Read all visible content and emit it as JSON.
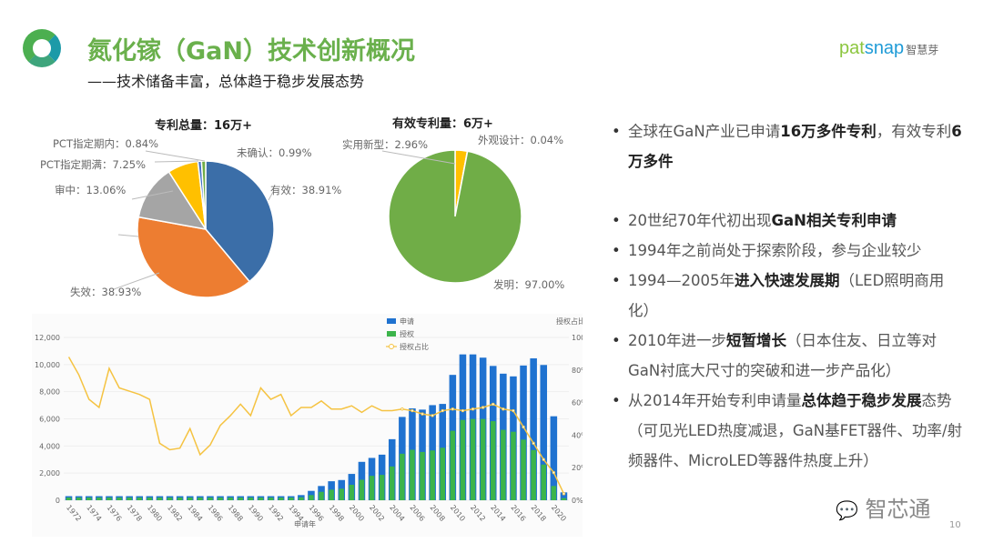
{
  "header": {
    "title": "氮化镓（GaN）技术创新概况",
    "subtitle": "——技术储备丰富，总体趋于稳步发展态势",
    "brand_a": "pat",
    "brand_b": "snap",
    "brand_cn": "智慧芽"
  },
  "bullets": [
    [
      {
        "t": "全球在GaN产业已申请",
        "b": false
      },
      {
        "t": "16万多件专利",
        "b": true
      },
      {
        "t": "，有效专利",
        "b": false
      },
      {
        "t": "6万多件",
        "b": true
      }
    ],
    [
      {
        "t": "20世纪70年代初出现",
        "b": false
      },
      {
        "t": "GaN相关专利申请",
        "b": true
      }
    ],
    [
      {
        "t": "1994年之前尚处于探索阶段，参与企业较少",
        "b": false
      }
    ],
    [
      {
        "t": "1994—2005年",
        "b": false
      },
      {
        "t": "进入快速发展期",
        "b": true
      },
      {
        "t": "（LED照明商用化）",
        "b": false
      }
    ],
    [
      {
        "t": "2010年进一步",
        "b": false
      },
      {
        "t": "短暂增长",
        "b": true
      },
      {
        "t": "（日本住友、日立等对GaN衬底大尺寸的突破和进一步产品化）",
        "b": false
      }
    ],
    [
      {
        "t": "从2014年开始专利申请量",
        "b": false
      },
      {
        "t": "总体趋于稳步发展",
        "b": true
      },
      {
        "t": "态势（可见光LED热度减退，GaN基FET器件、功率/射频器件、MicroLED等器件热度上升）",
        "b": false
      }
    ]
  ],
  "footer": {
    "wechat": "智芯通",
    "page": "10"
  },
  "chart_data": [
    {
      "type": "pie",
      "title": "专利总量：16万+",
      "slices": [
        {
          "label": "有效",
          "value": 38.91,
          "text": "有效：38.91%",
          "color": "#3b6ea8"
        },
        {
          "label": "失效",
          "value": 38.93,
          "text": "失效：38.93%",
          "color": "#ed7d31"
        },
        {
          "label": "审中",
          "value": 13.06,
          "text": "审中：13.06%",
          "color": "#a5a5a5"
        },
        {
          "label": "PCT指定期满",
          "value": 7.25,
          "text": "PCT指定期满：7.25%",
          "color": "#ffc000"
        },
        {
          "label": "PCT指定期内",
          "value": 0.84,
          "text": "PCT指定期内：0.84%",
          "color": "#4472c4"
        },
        {
          "label": "未确认",
          "value": 0.99,
          "text": "未确认：0.99%",
          "color": "#70ad47"
        }
      ]
    },
    {
      "type": "pie",
      "title": "有效专利量：6万+",
      "slices": [
        {
          "label": "实用新型",
          "value": 2.96,
          "text": "实用新型：2.96%",
          "color": "#ffc000"
        },
        {
          "label": "外观设计",
          "value": 0.04,
          "text": "外观设计：0.04%",
          "color": "#4472c4"
        },
        {
          "label": "发明",
          "value": 97.0,
          "text": "发明：97.00%",
          "color": "#70ad47"
        }
      ]
    },
    {
      "type": "bar",
      "xlabel": "申请年",
      "y2label": "授权占比",
      "ylim": [
        0,
        12000
      ],
      "y_ticks": [
        "0",
        "2,000",
        "4,000",
        "6,000",
        "8,000",
        "10,000",
        "12,000"
      ],
      "y2lim": [
        0,
        100
      ],
      "y2_ticks": [
        "0%",
        "20%",
        "40%",
        "60%",
        "80%",
        "100%"
      ],
      "legend": [
        "申请",
        "授权",
        "授权占比"
      ],
      "legend_position": "top",
      "colors": {
        "申请": "#1f72d0",
        "授权": "#3cb44b",
        "授权占比": "#f5c342"
      },
      "x": [
        1972,
        1973,
        1974,
        1975,
        1976,
        1977,
        1978,
        1979,
        1980,
        1981,
        1982,
        1983,
        1984,
        1985,
        1986,
        1987,
        1988,
        1989,
        1990,
        1991,
        1992,
        1993,
        1994,
        1995,
        1996,
        1997,
        1998,
        1999,
        2000,
        2001,
        2002,
        2003,
        2004,
        2005,
        2006,
        2007,
        2008,
        2009,
        2010,
        2011,
        2012,
        2013,
        2014,
        2015,
        2016,
        2017,
        2018,
        2019,
        2020,
        2021
      ],
      "series": [
        {
          "name": "申请",
          "values": [
            300,
            300,
            300,
            300,
            300,
            300,
            300,
            300,
            300,
            300,
            300,
            300,
            300,
            300,
            300,
            300,
            300,
            300,
            300,
            300,
            300,
            300,
            300,
            380,
            690,
            1050,
            1400,
            1490,
            1940,
            2830,
            3120,
            3360,
            4500,
            6140,
            6770,
            6680,
            7010,
            7100,
            9240,
            10750,
            10750,
            10510,
            9900,
            9330,
            9130,
            9930,
            10460,
            9970,
            6190,
            580
          ]
        },
        {
          "name": "授权",
          "values": [
            200,
            200,
            200,
            200,
            200,
            200,
            200,
            200,
            200,
            200,
            200,
            200,
            200,
            200,
            200,
            200,
            200,
            200,
            200,
            200,
            200,
            200,
            200,
            220,
            380,
            620,
            780,
            850,
            1140,
            1510,
            1800,
            1870,
            2490,
            3430,
            3720,
            3560,
            3670,
            3870,
            5120,
            5920,
            5990,
            5990,
            5830,
            5190,
            5050,
            4470,
            3700,
            2630,
            1050,
            160
          ]
        },
        {
          "name": "授权占比",
          "values": [
            88,
            77,
            62,
            57,
            81,
            69,
            67,
            65,
            62,
            35,
            31,
            32,
            44,
            28,
            34,
            46,
            52,
            59,
            52,
            69,
            62,
            65,
            52,
            57,
            57,
            61,
            56,
            56,
            58,
            54,
            58,
            55,
            55,
            56,
            55,
            53,
            52,
            55,
            56,
            55,
            56,
            57,
            59,
            56,
            55,
            45,
            35,
            25,
            17,
            4
          ]
        }
      ]
    }
  ]
}
